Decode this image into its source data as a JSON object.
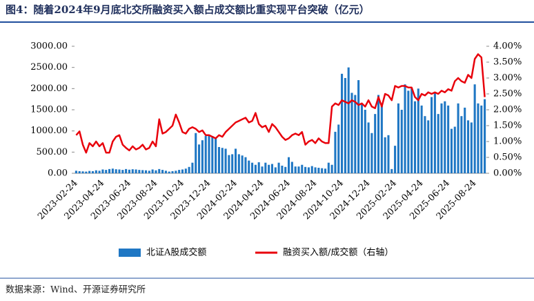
{
  "chart_data": {
    "type": "bar-line",
    "title": "图4：随着2024年9月底北交所融资买入额占成交额比重实现平台突破（亿元）",
    "source": "数据来源：Wind、开源证券研究所",
    "categories": [
      "2023-02-24",
      null,
      null,
      null,
      null,
      null,
      null,
      null,
      "2023-04-24",
      null,
      null,
      null,
      null,
      null,
      null,
      null,
      "2023-06-24",
      null,
      null,
      null,
      null,
      null,
      null,
      null,
      "2023-08-24",
      null,
      null,
      null,
      null,
      null,
      null,
      null,
      "2023-10-24",
      null,
      null,
      null,
      null,
      null,
      null,
      null,
      "2023-12-24",
      null,
      null,
      null,
      null,
      null,
      null,
      null,
      "2024-02-24",
      null,
      null,
      null,
      null,
      null,
      null,
      null,
      "2024-04-24",
      null,
      null,
      null,
      null,
      null,
      null,
      null,
      "2024-06-24",
      null,
      null,
      null,
      null,
      null,
      null,
      null,
      "2024-08-24",
      null,
      null,
      null,
      null,
      null,
      null,
      null,
      "2024-10-24",
      null,
      null,
      null,
      null,
      null,
      null,
      null,
      "2024-12-24",
      null,
      null,
      null,
      null,
      null,
      null,
      null,
      "2025-02-24",
      null,
      null,
      null,
      null,
      null,
      null,
      null,
      "2025-04-24",
      null,
      null,
      null,
      null,
      null,
      null,
      null,
      "2025-06-24",
      null,
      null,
      null,
      null,
      null,
      null,
      null,
      "2025-08-24",
      null,
      null,
      null
    ],
    "series": [
      {
        "name": "北证A股成交额",
        "color": "#1f77c4",
        "axis": "y",
        "values": [
          60,
          50,
          45,
          40,
          55,
          50,
          70,
          60,
          90,
          80,
          100,
          110,
          95,
          90,
          80,
          100,
          85,
          95,
          90,
          80,
          75,
          70,
          60,
          90,
          70,
          100,
          80,
          60,
          40,
          50,
          60,
          80,
          90,
          110,
          150,
          250,
          950,
          680,
          780,
          880,
          900,
          880,
          820,
          620,
          600,
          580,
          430,
          450,
          580,
          450,
          420,
          380,
          300,
          250,
          200,
          260,
          160,
          250,
          200,
          220,
          140,
          250,
          180,
          150,
          380,
          270,
          160,
          160,
          200,
          150,
          140,
          170,
          140,
          130,
          120,
          110,
          250,
          200,
          980,
          1150,
          2350,
          2250,
          2500,
          1900,
          1850,
          2200,
          1650,
          1500,
          1200,
          950,
          1400,
          1850,
          1650,
          850,
          900,
          100,
          650,
          1650,
          1500,
          2100,
          1950,
          2000,
          1700,
          2000,
          1600,
          1350,
          1250,
          1800,
          1900,
          1400,
          1650,
          1700,
          1600,
          1050,
          1100,
          1650,
          1350,
          1550,
          1250,
          1200,
          2100,
          1650,
          1600,
          1750
        ]
      },
      {
        "name": "融资买入额/成交额（右轴）",
        "color": "#e8000b",
        "axis": "y2",
        "values": [
          1.2,
          1.32,
          0.9,
          0.65,
          0.95,
          0.85,
          1.0,
          0.85,
          0.95,
          0.65,
          0.65,
          1.0,
          1.15,
          1.2,
          0.9,
          0.8,
          0.72,
          0.85,
          0.75,
          0.8,
          0.9,
          0.75,
          0.8,
          1.0,
          0.85,
          1.7,
          1.25,
          1.3,
          1.4,
          1.5,
          1.85,
          1.6,
          1.3,
          1.25,
          1.4,
          1.45,
          1.4,
          1.3,
          1.35,
          1.2,
          1.2,
          1.15,
          1.1,
          1.2,
          1.15,
          1.3,
          1.4,
          1.5,
          1.6,
          1.65,
          1.7,
          1.75,
          1.6,
          1.65,
          1.9,
          1.55,
          1.45,
          1.5,
          1.3,
          1.55,
          1.45,
          1.3,
          1.15,
          1.05,
          1.1,
          1.2,
          1.25,
          1.2,
          1.3,
          0.9,
          1.0,
          1.05,
          0.95,
          1.1,
          1.0,
          0.95,
          0.95,
          2.1,
          2.2,
          2.15,
          2.3,
          2.25,
          2.2,
          2.3,
          2.25,
          2.15,
          2.2,
          2.1,
          2.3,
          2.1,
          2.05,
          2.4,
          2.1,
          2.5,
          2.45,
          2.3,
          2.75,
          2.7,
          2.75,
          2.75,
          2.7,
          2.7,
          2.4,
          2.3,
          2.5,
          2.45,
          2.55,
          2.5,
          2.55,
          2.5,
          2.6,
          2.55,
          2.65,
          2.6,
          2.9,
          3.0,
          2.9,
          2.85,
          3.1,
          3.0,
          3.6,
          3.75,
          3.65,
          2.4
        ]
      }
    ],
    "ylim": [
      0,
      3000
    ],
    "yticks": [
      {
        "value": 0,
        "label": "0.00"
      },
      {
        "value": 500,
        "label": "500.00"
      },
      {
        "value": 1000,
        "label": "1000.00"
      },
      {
        "value": 1500,
        "label": "1500.00"
      },
      {
        "value": 2000,
        "label": "2000.00"
      },
      {
        "value": 2500,
        "label": "2500.00"
      },
      {
        "value": 3000,
        "label": "3000.00"
      }
    ],
    "y2lim": [
      0,
      4
    ],
    "y2ticks": [
      {
        "value": 0,
        "label": "0.00%"
      },
      {
        "value": 0.5,
        "label": "0.50%"
      },
      {
        "value": 1,
        "label": "1.00%"
      },
      {
        "value": 1.5,
        "label": "1.50%"
      },
      {
        "value": 2,
        "label": "2.00%"
      },
      {
        "value": 2.5,
        "label": "2.50%"
      },
      {
        "value": 3,
        "label": "3.00%"
      },
      {
        "value": 3.5,
        "label": "3.50%"
      },
      {
        "value": 4,
        "label": "4.00%"
      }
    ],
    "legend": "bottom"
  }
}
